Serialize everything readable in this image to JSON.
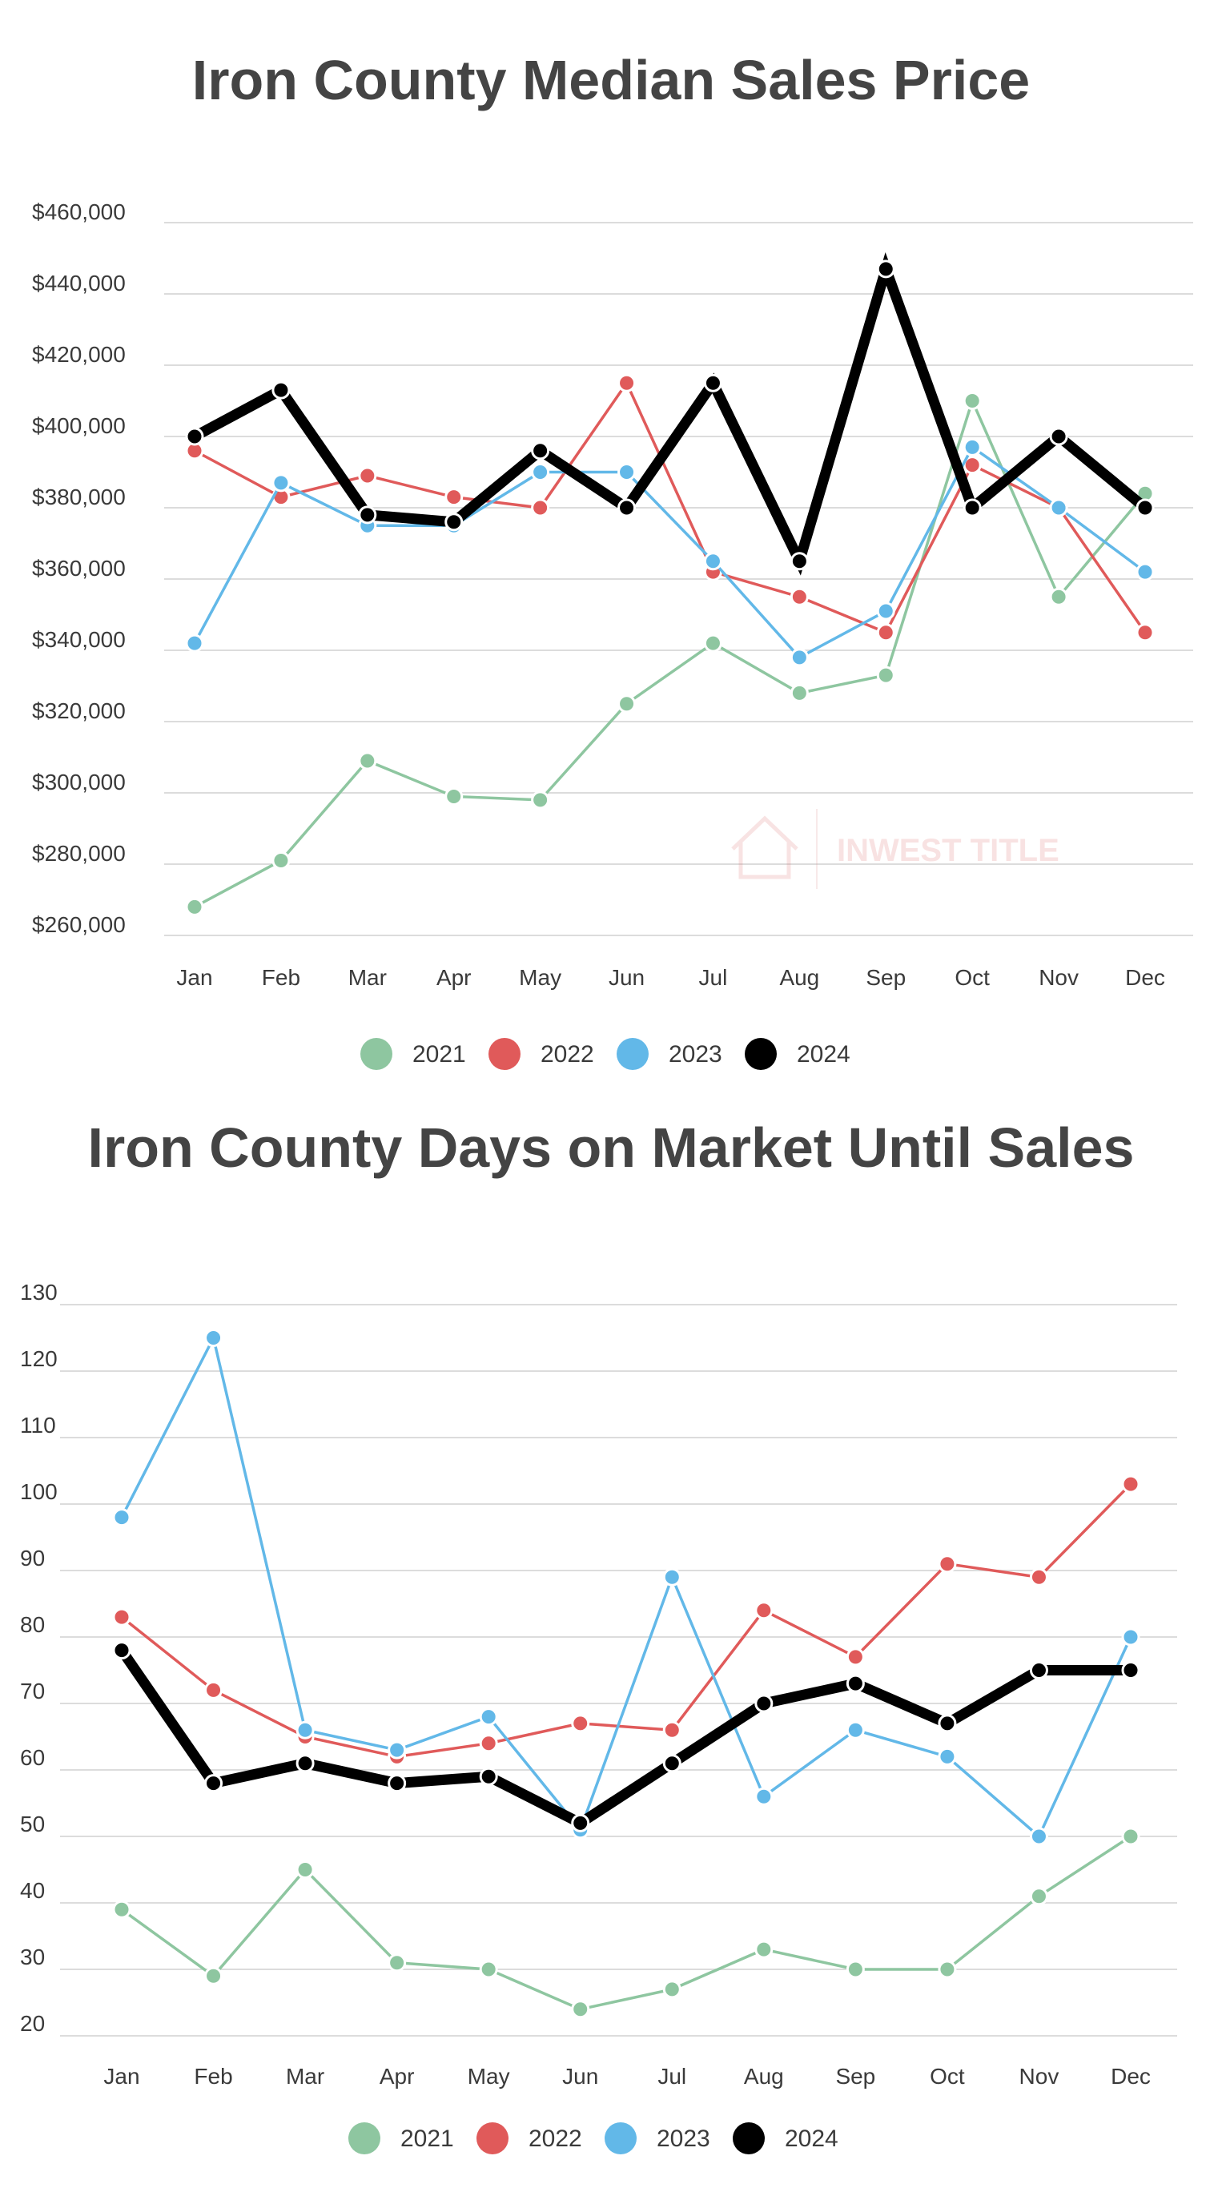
{
  "chart_data": [
    {
      "type": "line",
      "title": "Iron County Median Sales Price",
      "categories": [
        "Jan",
        "Feb",
        "Mar",
        "Apr",
        "May",
        "Jun",
        "Jul",
        "Aug",
        "Sep",
        "Oct",
        "Nov",
        "Dec"
      ],
      "ylim": [
        260000,
        460000
      ],
      "yticks": [
        260000,
        280000,
        300000,
        320000,
        340000,
        360000,
        380000,
        400000,
        420000,
        440000,
        460000
      ],
      "ytick_labels": [
        "$260,000",
        "$280,000",
        "$300,000",
        "$320,000",
        "$340,000",
        "$360,000",
        "$380,000",
        "$400,000",
        "$420,000",
        "$440,000",
        "$460,000"
      ],
      "grid": true,
      "legend_position": "bottom",
      "watermark": "INWEST TITLE",
      "series": [
        {
          "name": "2021",
          "color": "#8ec6a0",
          "values": [
            268000,
            281000,
            309000,
            299000,
            298000,
            325000,
            342000,
            328000,
            333000,
            410000,
            355000,
            384000
          ]
        },
        {
          "name": "2022",
          "color": "#e05a5a",
          "values": [
            396000,
            383000,
            389000,
            383000,
            380000,
            415000,
            362000,
            355000,
            345000,
            392000,
            380000,
            345000
          ]
        },
        {
          "name": "2023",
          "color": "#62b8e8",
          "values": [
            342000,
            387000,
            375000,
            375000,
            390000,
            390000,
            365000,
            338000,
            351000,
            397000,
            380000,
            362000
          ]
        },
        {
          "name": "2024",
          "color": "#000000",
          "values": [
            400000,
            413000,
            378000,
            376000,
            396000,
            380000,
            415000,
            365000,
            447000,
            380000,
            400000,
            380000
          ]
        }
      ]
    },
    {
      "type": "line",
      "title": "Iron County Days on Market Until Sales",
      "categories": [
        "Jan",
        "Feb",
        "Mar",
        "Apr",
        "May",
        "Jun",
        "Jul",
        "Aug",
        "Sep",
        "Oct",
        "Nov",
        "Dec"
      ],
      "ylim": [
        20,
        130
      ],
      "yticks": [
        20,
        30,
        40,
        50,
        60,
        70,
        80,
        90,
        100,
        110,
        120,
        130
      ],
      "ytick_labels": [
        "20",
        "30",
        "40",
        "50",
        "60",
        "70",
        "80",
        "90",
        "100",
        "110",
        "120",
        "130"
      ],
      "grid": true,
      "legend_position": "bottom",
      "series": [
        {
          "name": "2021",
          "color": "#8ec6a0",
          "values": [
            39,
            29,
            45,
            31,
            30,
            24,
            27,
            33,
            30,
            30,
            41,
            50
          ]
        },
        {
          "name": "2022",
          "color": "#e05a5a",
          "values": [
            83,
            72,
            65,
            62,
            64,
            67,
            66,
            84,
            77,
            91,
            89,
            103
          ]
        },
        {
          "name": "2023",
          "color": "#62b8e8",
          "values": [
            98,
            125,
            66,
            63,
            68,
            51,
            89,
            56,
            66,
            62,
            50,
            80
          ]
        },
        {
          "name": "2024",
          "color": "#000000",
          "values": [
            78,
            58,
            61,
            58,
            59,
            52,
            61,
            70,
            73,
            67,
            75,
            75
          ]
        }
      ]
    }
  ]
}
